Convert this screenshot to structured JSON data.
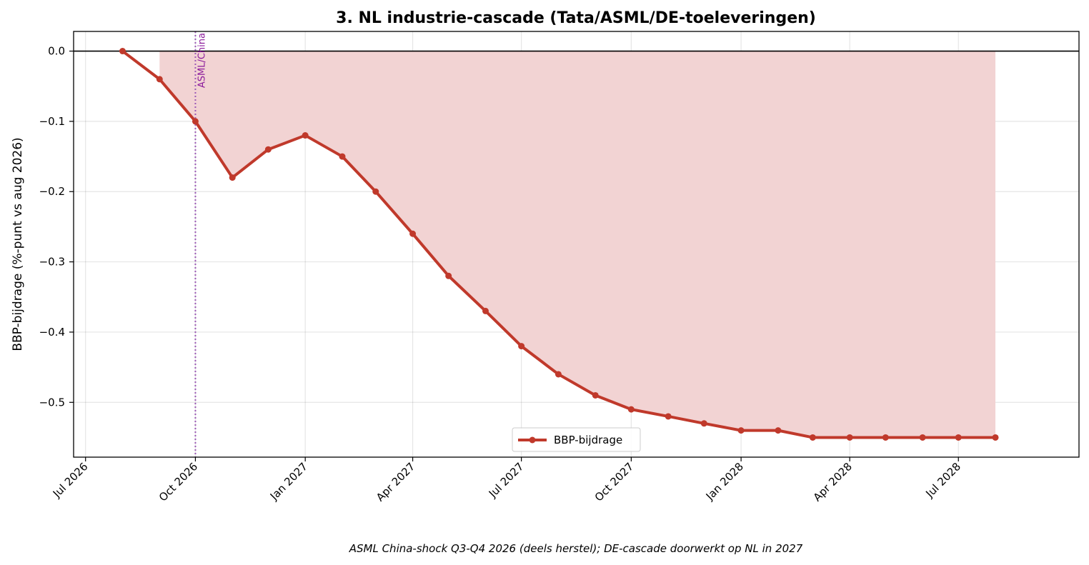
{
  "chart_data": {
    "type": "line",
    "title": "3. NL industrie-cascade (Tata/ASML/DE-toeleveringen)",
    "ylabel": "BBP-bijdrage (%-punt vs aug 2026)",
    "xlabel": "",
    "caption": "ASML China-shock Q3-Q4 2026 (deels herstel); DE-cascade doorwerkt op NL in 2027",
    "x_ticks": [
      {
        "date": "2026-07-01",
        "label": "Jul 2026"
      },
      {
        "date": "2026-10-01",
        "label": "Oct 2026"
      },
      {
        "date": "2027-01-01",
        "label": "Jan 2027"
      },
      {
        "date": "2027-04-01",
        "label": "Apr 2027"
      },
      {
        "date": "2027-07-01",
        "label": "Jul 2027"
      },
      {
        "date": "2027-10-01",
        "label": "Oct 2027"
      },
      {
        "date": "2028-01-01",
        "label": "Jan 2028"
      },
      {
        "date": "2028-04-01",
        "label": "Apr 2028"
      },
      {
        "date": "2028-07-01",
        "label": "Jul 2028"
      }
    ],
    "y_ticks": [
      0.0,
      -0.1,
      -0.2,
      -0.3,
      -0.4,
      -0.5
    ],
    "y_tick_labels": [
      "0.0",
      "−0.1",
      "−0.2",
      "−0.3",
      "−0.4",
      "−0.5"
    ],
    "xlim": [
      "2026-06-21",
      "2028-10-10"
    ],
    "ylim": [
      -0.578,
      0.028
    ],
    "grid": true,
    "legend": {
      "placement": "lower-center"
    },
    "zero_line": true,
    "fill_between_zero": {
      "from": "2026-09-01",
      "to": "2028-09-01",
      "color": "#f2d3d3"
    },
    "annotations": [
      {
        "type": "vline",
        "date": "2026-10-01",
        "label": "ASML/China",
        "color": "#8b1a9b"
      }
    ],
    "series": [
      {
        "name": "BBP-bijdrage",
        "color": "#c0392b",
        "points": [
          {
            "x": "2026-08-01",
            "y": 0.0
          },
          {
            "x": "2026-09-01",
            "y": -0.04
          },
          {
            "x": "2026-10-01",
            "y": -0.1
          },
          {
            "x": "2026-11-01",
            "y": -0.18
          },
          {
            "x": "2026-12-01",
            "y": -0.14
          },
          {
            "x": "2027-01-01",
            "y": -0.12
          },
          {
            "x": "2027-02-01",
            "y": -0.15
          },
          {
            "x": "2027-03-01",
            "y": -0.2
          },
          {
            "x": "2027-04-01",
            "y": -0.26
          },
          {
            "x": "2027-05-01",
            "y": -0.32
          },
          {
            "x": "2027-06-01",
            "y": -0.37
          },
          {
            "x": "2027-07-01",
            "y": -0.42
          },
          {
            "x": "2027-08-01",
            "y": -0.46
          },
          {
            "x": "2027-09-01",
            "y": -0.49
          },
          {
            "x": "2027-10-01",
            "y": -0.51
          },
          {
            "x": "2027-11-01",
            "y": -0.52
          },
          {
            "x": "2027-12-01",
            "y": -0.53
          },
          {
            "x": "2028-01-01",
            "y": -0.54
          },
          {
            "x": "2028-02-01",
            "y": -0.54
          },
          {
            "x": "2028-03-01",
            "y": -0.55
          },
          {
            "x": "2028-04-01",
            "y": -0.55
          },
          {
            "x": "2028-05-01",
            "y": -0.55
          },
          {
            "x": "2028-06-01",
            "y": -0.55
          },
          {
            "x": "2028-07-01",
            "y": -0.55
          },
          {
            "x": "2028-08-01",
            "y": -0.55
          }
        ]
      }
    ]
  }
}
